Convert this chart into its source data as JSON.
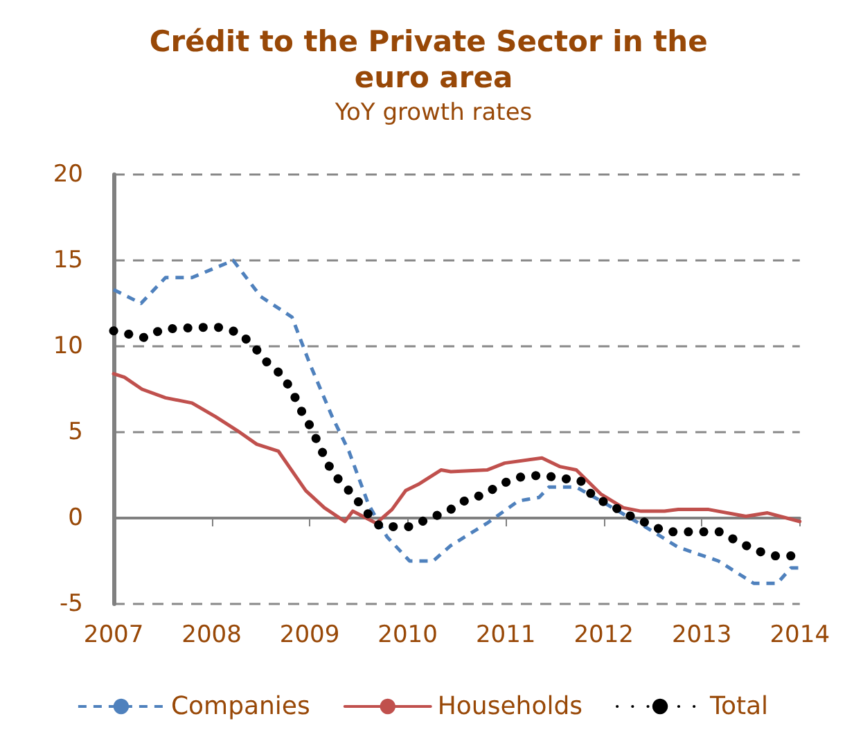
{
  "chart_data": {
    "type": "line",
    "title": "Crédit to the Private Sector in the euro area",
    "subtitle": "YoY growth rates",
    "xlim": [
      2007,
      2014
    ],
    "xticks": [
      2007,
      2008,
      2009,
      2010,
      2011,
      2012,
      2013,
      2014
    ],
    "ylim": [
      -5,
      20
    ],
    "yticks": [
      -5,
      0,
      5,
      10,
      15,
      20
    ],
    "grid": "y",
    "legend": "bottom",
    "marker": "none",
    "series": [
      {
        "name": "Companies",
        "color": "#4f81bd",
        "line_style": "dashed",
        "x": [
          2007,
          2007.28,
          2007.53,
          2007.8,
          2008.22,
          2008.5,
          2008.82,
          2009,
          2009.23,
          2009.4,
          2009.6,
          2009.79,
          2010.02,
          2010.26,
          2010.44,
          2010.81,
          2011.13,
          2011.34,
          2011.44,
          2011.72,
          2011.97,
          2012.42,
          2012.76,
          2013.17,
          2013.53,
          2013.77,
          2013.91,
          2014
        ],
        "values": [
          13.3,
          12.5,
          14,
          14,
          15,
          12.9,
          11.7,
          9,
          5.9,
          3.9,
          0.8,
          -1.1,
          -2.5,
          -2.5,
          -1.6,
          -0.3,
          1,
          1.2,
          1.8,
          1.8,
          1,
          -0.5,
          -1.7,
          -2.5,
          -3.8,
          -3.8,
          -2.9,
          -2.9
        ]
      },
      {
        "name": "Households",
        "color": "#c0504d",
        "line_style": "solid",
        "x": [
          2007,
          2007.11,
          2007.29,
          2007.53,
          2007.8,
          2008.04,
          2008.26,
          2008.46,
          2008.68,
          2008.96,
          2009.15,
          2009.36,
          2009.44,
          2009.68,
          2009.84,
          2009.98,
          2010.12,
          2010.34,
          2010.44,
          2010.81,
          2010.99,
          2011.37,
          2011.55,
          2011.72,
          2011.97,
          2012.2,
          2012.38,
          2012.62,
          2012.76,
          2013.07,
          2013.45,
          2013.67,
          2014
        ],
        "values": [
          8.4,
          8.2,
          7.5,
          7,
          6.7,
          5.9,
          5.1,
          4.3,
          3.9,
          1.6,
          0.6,
          -0.2,
          0.4,
          -0.3,
          0.5,
          1.6,
          2,
          2.8,
          2.7,
          2.8,
          3.2,
          3.5,
          3,
          2.8,
          1.4,
          0.6,
          0.4,
          0.4,
          0.5,
          0.5,
          0.1,
          0.3,
          -0.2
        ]
      },
      {
        "name": "Total",
        "color": "#000000",
        "line_style": "dotted",
        "x": [
          2007,
          2007.32,
          2007.5,
          2007.89,
          2008.07,
          2008.28,
          2008.43,
          2008.56,
          2008.72,
          2008.82,
          2008.91,
          2009.01,
          2009.1,
          2009.19,
          2009.3,
          2009.45,
          2009.57,
          2009.72,
          2009.88,
          2010.02,
          2010.23,
          2010.41,
          2010.58,
          2010.787,
          2010.96,
          2011.16,
          2011.37,
          2011.58,
          2011.76,
          2011.9,
          2012.06,
          2012.24,
          2012.44,
          2012.63,
          2012.82,
          2012.99,
          2013.18,
          2013.38,
          2013.56,
          2013.75,
          2013.98
        ],
        "values": [
          10.9,
          10.5,
          11,
          11.1,
          11.1,
          10.8,
          10,
          9.1,
          8.3,
          7.4,
          6.3,
          5.3,
          4.2,
          3.1,
          2.2,
          1.3,
          0.4,
          -0.5,
          -0.5,
          -0.5,
          0,
          0.4,
          1,
          1.4,
          2,
          2.4,
          2.5,
          2.3,
          2.2,
          1.2,
          0.8,
          0.2,
          -0.3,
          -0.8,
          -0.8,
          -0.8,
          -0.8,
          -1.4,
          -1.9,
          -2.2,
          -2.2
        ]
      }
    ]
  }
}
